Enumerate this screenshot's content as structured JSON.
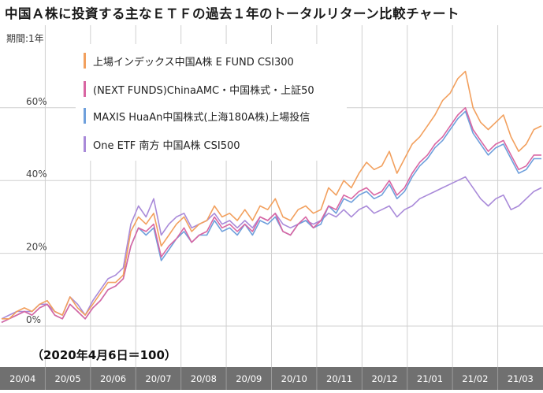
{
  "title": "中国Ａ株に投資する主なＥＴＦの過去１年のトータルリターン比較チャート",
  "period_label": "期間:1年",
  "baseline_note": "（2020年4月6日＝100）",
  "colors": {
    "background": "#ffffff",
    "grid": "#d0d0d0",
    "axis_band": "#707070",
    "axis_text": "#ffffff"
  },
  "chart_data": {
    "type": "line",
    "x_ticks": [
      "20/04",
      "20/05",
      "20/06",
      "20/07",
      "20/08",
      "20/09",
      "20/10",
      "20/11",
      "20/12",
      "21/01",
      "21/02",
      "21/03"
    ],
    "y_ticks": [
      "0%",
      "20%",
      "40%",
      "60%"
    ],
    "ylim": [
      0,
      75
    ],
    "grid": true,
    "legend_position": "top-left",
    "series": [
      {
        "name": "上場インデックス中国A株 E FUND CSI300",
        "color": "#f2a05e",
        "values": [
          2,
          2,
          4,
          5,
          4,
          6,
          7,
          4,
          3,
          8,
          5,
          3,
          6,
          9,
          12,
          12,
          14,
          26,
          30,
          28,
          31,
          22,
          25,
          28,
          30,
          26,
          28,
          29,
          33,
          30,
          31,
          29,
          32,
          29,
          33,
          32,
          35,
          30,
          29,
          32,
          33,
          31,
          32,
          38,
          36,
          40,
          38,
          42,
          45,
          43,
          44,
          48,
          42,
          46,
          50,
          52,
          55,
          58,
          62,
          64,
          68,
          70,
          60,
          56,
          54,
          56,
          58,
          52,
          48,
          50,
          54,
          55
        ]
      },
      {
        "name": "(NEXT FUNDS)ChinaAMC・中国株式・上証50",
        "color": "#d966a3",
        "values": [
          1,
          2,
          3,
          4,
          3,
          5,
          6,
          3,
          2,
          6,
          4,
          2,
          5,
          7,
          10,
          11,
          13,
          22,
          27,
          26,
          28,
          19,
          22,
          24,
          27,
          23,
          25,
          26,
          30,
          27,
          28,
          26,
          28,
          26,
          30,
          29,
          31,
          26,
          25,
          28,
          30,
          27,
          29,
          33,
          32,
          36,
          35,
          37,
          38,
          36,
          37,
          40,
          36,
          38,
          42,
          45,
          47,
          50,
          52,
          55,
          58,
          60,
          54,
          51,
          48,
          50,
          51,
          47,
          43,
          44,
          47,
          47
        ]
      },
      {
        "name": "MAXIS HuaAn中国株式(上海180A株)上場投信",
        "color": "#6fa0dc",
        "values": [
          1,
          2,
          3,
          4,
          3,
          5,
          6,
          3,
          2,
          6,
          4,
          2,
          5,
          7,
          10,
          11,
          13,
          22,
          27,
          25,
          27,
          18,
          21,
          24,
          26,
          23,
          25,
          25,
          29,
          26,
          27,
          25,
          28,
          25,
          29,
          28,
          30,
          26,
          25,
          28,
          29,
          27,
          28,
          33,
          31,
          35,
          34,
          36,
          37,
          35,
          36,
          39,
          35,
          37,
          41,
          44,
          46,
          49,
          51,
          54,
          57,
          59,
          53,
          50,
          47,
          49,
          50,
          46,
          42,
          43,
          46,
          46
        ]
      },
      {
        "name": "One ETF 南方 中国A株 CSI500",
        "color": "#a98ad9",
        "values": [
          2,
          3,
          4,
          4,
          4,
          6,
          6,
          4,
          3,
          8,
          6,
          3,
          7,
          10,
          13,
          14,
          16,
          28,
          33,
          30,
          35,
          25,
          28,
          30,
          31,
          27,
          28,
          29,
          31,
          28,
          29,
          27,
          29,
          27,
          30,
          29,
          31,
          28,
          27,
          28,
          29,
          28,
          29,
          31,
          30,
          32,
          30,
          32,
          33,
          31,
          32,
          33,
          30,
          32,
          33,
          35,
          36,
          37,
          38,
          39,
          40,
          41,
          38,
          35,
          33,
          35,
          36,
          32,
          33,
          35,
          37,
          38
        ]
      }
    ]
  }
}
